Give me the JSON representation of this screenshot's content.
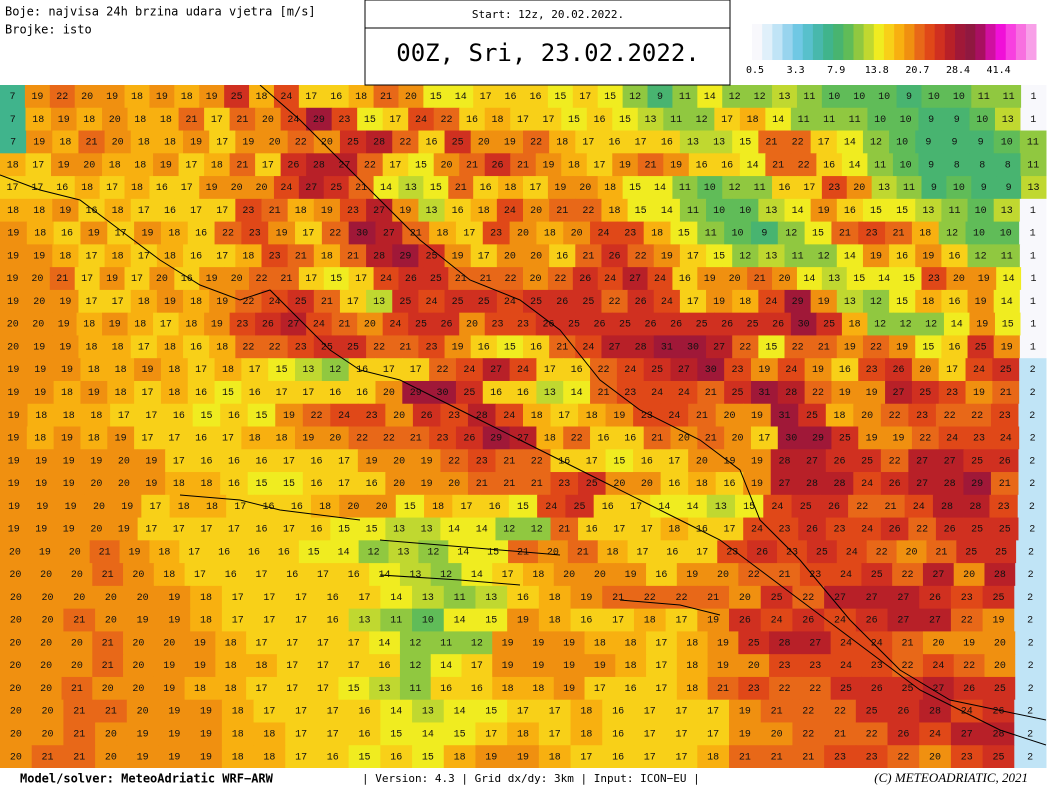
{
  "header": {
    "legend_title": "Boje: najvisa 24h brzina udara vjetra [m/s]",
    "numbers_note": "Brojke: isto",
    "start": "Start: 12z, 20.02.2022.",
    "valid_time": "00Z, Sri, 23.02.2022."
  },
  "legend": {
    "ticks": [
      0.5,
      3.3,
      7.9,
      13.8,
      20.7,
      28.4,
      41.4
    ],
    "colors": [
      "#f8f8fc",
      "#e0f0fa",
      "#c0e4f6",
      "#98d4ee",
      "#70c8e4",
      "#58c0cc",
      "#48b8ac",
      "#40b48c",
      "#48b470",
      "#60bc58",
      "#90c840",
      "#c0d830",
      "#f0ec20",
      "#f8d018",
      "#f8b010",
      "#f09010",
      "#e86818",
      "#e04818",
      "#d03020",
      "#b82028",
      "#a01838",
      "#901840",
      "#a81060",
      "#d010a0",
      "#f010d8",
      "#f840e0",
      "#f870e0",
      "#f8a0e8"
    ]
  },
  "map": {
    "grid": [
      [
        7,
        19,
        22,
        20,
        19,
        18,
        19,
        18,
        19,
        25,
        18,
        24,
        17,
        16,
        18,
        21,
        20,
        15,
        14,
        17,
        16,
        16,
        15,
        17,
        15,
        12,
        9,
        11,
        14,
        12,
        12,
        13,
        11,
        10,
        10,
        10,
        9,
        10,
        10,
        11,
        11,
        1
      ],
      [
        7,
        18,
        19,
        18,
        20,
        18,
        18,
        21,
        17,
        21,
        20,
        24,
        29,
        23,
        15,
        17,
        24,
        22,
        16,
        18,
        17,
        17,
        15,
        16,
        15,
        13,
        11,
        12,
        17,
        18,
        14,
        11,
        11,
        11,
        10,
        10,
        9,
        9,
        10,
        13,
        1
      ],
      [
        7,
        19,
        18,
        21,
        20,
        18,
        18,
        19,
        17,
        19,
        20,
        22,
        20,
        25,
        28,
        22,
        16,
        25,
        20,
        19,
        22,
        18,
        17,
        16,
        17,
        16,
        13,
        13,
        15,
        21,
        22,
        17,
        14,
        12,
        10,
        9,
        9,
        9,
        10,
        11
      ],
      [
        18,
        17,
        19,
        20,
        18,
        18,
        19,
        17,
        18,
        21,
        17,
        26,
        28,
        27,
        22,
        17,
        15,
        20,
        21,
        26,
        21,
        19,
        18,
        17,
        19,
        21,
        19,
        16,
        16,
        14,
        21,
        22,
        16,
        14,
        11,
        10,
        9,
        8,
        8,
        8,
        11
      ],
      [
        17,
        17,
        16,
        18,
        17,
        18,
        16,
        17,
        19,
        20,
        20,
        24,
        27,
        25,
        21,
        14,
        13,
        15,
        21,
        16,
        18,
        17,
        19,
        20,
        18,
        15,
        14,
        11,
        10,
        12,
        11,
        16,
        17,
        23,
        20,
        13,
        11,
        9,
        10,
        9,
        9,
        13
      ],
      [
        18,
        18,
        19,
        16,
        18,
        17,
        16,
        17,
        17,
        23,
        21,
        18,
        19,
        23,
        27,
        19,
        13,
        16,
        18,
        24,
        20,
        21,
        22,
        18,
        15,
        14,
        11,
        10,
        10,
        13,
        14,
        19,
        16,
        15,
        15,
        13,
        11,
        10,
        13,
        1
      ],
      [
        19,
        18,
        16,
        19,
        17,
        19,
        18,
        16,
        22,
        23,
        19,
        17,
        22,
        30,
        27,
        21,
        18,
        17,
        23,
        20,
        18,
        20,
        24,
        23,
        18,
        15,
        11,
        10,
        9,
        12,
        15,
        21,
        23,
        21,
        18,
        12,
        10,
        10,
        1
      ],
      [
        19,
        19,
        18,
        17,
        18,
        17,
        18,
        16,
        17,
        18,
        23,
        21,
        18,
        21,
        28,
        29,
        25,
        19,
        17,
        20,
        20,
        16,
        21,
        26,
        22,
        19,
        17,
        15,
        12,
        13,
        11,
        12,
        14,
        19,
        16,
        19,
        16,
        12,
        11,
        1
      ],
      [
        19,
        20,
        21,
        17,
        19,
        17,
        20,
        16,
        19,
        20,
        22,
        21,
        17,
        15,
        17,
        24,
        26,
        25,
        21,
        21,
        22,
        20,
        22,
        26,
        24,
        27,
        24,
        16,
        19,
        20,
        21,
        20,
        14,
        13,
        15,
        14,
        15,
        23,
        20,
        19,
        14,
        1
      ],
      [
        19,
        20,
        19,
        17,
        17,
        18,
        19,
        18,
        19,
        22,
        24,
        25,
        21,
        17,
        13,
        25,
        24,
        25,
        25,
        24,
        25,
        26,
        25,
        22,
        26,
        24,
        17,
        19,
        18,
        24,
        29,
        19,
        13,
        12,
        15,
        18,
        16,
        19,
        14,
        1
      ],
      [
        20,
        20,
        19,
        18,
        19,
        18,
        17,
        18,
        19,
        23,
        26,
        27,
        24,
        21,
        20,
        24,
        25,
        26,
        20,
        23,
        23,
        26,
        25,
        26,
        25,
        26,
        26,
        25,
        26,
        25,
        26,
        30,
        25,
        18,
        12,
        12,
        12,
        14,
        19,
        15,
        1
      ],
      [
        20,
        19,
        19,
        18,
        18,
        17,
        18,
        16,
        18,
        22,
        22,
        23,
        25,
        25,
        22,
        21,
        23,
        19,
        16,
        15,
        16,
        21,
        24,
        27,
        28,
        31,
        30,
        27,
        22,
        15,
        22,
        21,
        19,
        22,
        19,
        15,
        16,
        25,
        19,
        1
      ],
      [
        19,
        19,
        19,
        18,
        18,
        19,
        18,
        17,
        18,
        17,
        15,
        13,
        12,
        16,
        17,
        17,
        22,
        24,
        27,
        24,
        17,
        16,
        22,
        24,
        25,
        27,
        30,
        23,
        19,
        24,
        19,
        16,
        23,
        26,
        20,
        17,
        24,
        25,
        2
      ],
      [
        19,
        19,
        18,
        19,
        18,
        17,
        18,
        16,
        15,
        16,
        17,
        17,
        16,
        16,
        20,
        29,
        30,
        25,
        16,
        16,
        13,
        14,
        21,
        23,
        24,
        24,
        21,
        25,
        31,
        28,
        22,
        19,
        19,
        27,
        25,
        23,
        19,
        21,
        2
      ],
      [
        19,
        18,
        18,
        18,
        17,
        17,
        16,
        15,
        16,
        15,
        19,
        22,
        24,
        23,
        20,
        26,
        23,
        28,
        24,
        18,
        17,
        18,
        19,
        23,
        24,
        21,
        20,
        19,
        31,
        25,
        18,
        20,
        22,
        23,
        22,
        22,
        23,
        2
      ],
      [
        19,
        18,
        19,
        18,
        19,
        17,
        17,
        16,
        17,
        18,
        18,
        19,
        20,
        22,
        22,
        21,
        23,
        26,
        29,
        27,
        18,
        22,
        16,
        16,
        21,
        20,
        21,
        20,
        17,
        30,
        29,
        25,
        19,
        19,
        22,
        24,
        23,
        24,
        2
      ],
      [
        19,
        19,
        19,
        19,
        20,
        19,
        17,
        16,
        16,
        16,
        17,
        16,
        17,
        19,
        20,
        19,
        22,
        23,
        21,
        22,
        16,
        17,
        15,
        16,
        17,
        20,
        19,
        19,
        28,
        27,
        26,
        25,
        22,
        27,
        27,
        25,
        26,
        2
      ],
      [
        19,
        19,
        19,
        20,
        20,
        19,
        18,
        18,
        16,
        15,
        15,
        16,
        17,
        16,
        20,
        19,
        20,
        21,
        21,
        21,
        23,
        25,
        20,
        20,
        16,
        18,
        16,
        19,
        27,
        28,
        28,
        24,
        26,
        27,
        28,
        29,
        21,
        2
      ],
      [
        19,
        19,
        19,
        20,
        19,
        17,
        18,
        18,
        17,
        16,
        16,
        18,
        20,
        20,
        15,
        18,
        17,
        16,
        15,
        24,
        25,
        16,
        17,
        14,
        14,
        13,
        15,
        24,
        25,
        26,
        22,
        21,
        24,
        28,
        28,
        23,
        2
      ],
      [
        19,
        19,
        19,
        20,
        19,
        17,
        17,
        17,
        17,
        16,
        17,
        16,
        15,
        15,
        13,
        13,
        14,
        14,
        12,
        12,
        21,
        16,
        17,
        17,
        18,
        16,
        17,
        24,
        23,
        26,
        23,
        24,
        26,
        22,
        26,
        25,
        25,
        2
      ],
      [
        20,
        19,
        20,
        21,
        19,
        18,
        17,
        16,
        16,
        16,
        15,
        14,
        12,
        13,
        12,
        14,
        15,
        21,
        20,
        21,
        18,
        17,
        16,
        17,
        23,
        26,
        23,
        25,
        24,
        22,
        20,
        21,
        25,
        25,
        2
      ],
      [
        20,
        20,
        20,
        21,
        20,
        18,
        17,
        16,
        17,
        16,
        17,
        16,
        14,
        13,
        12,
        14,
        17,
        18,
        20,
        20,
        19,
        16,
        19,
        20,
        22,
        21,
        23,
        24,
        25,
        22,
        27,
        20,
        28,
        2
      ],
      [
        20,
        20,
        20,
        20,
        20,
        19,
        18,
        17,
        17,
        17,
        16,
        17,
        14,
        13,
        11,
        13,
        16,
        18,
        19,
        21,
        22,
        22,
        21,
        20,
        25,
        22,
        27,
        27,
        27,
        26,
        23,
        25,
        2
      ],
      [
        20,
        20,
        21,
        20,
        19,
        19,
        18,
        17,
        17,
        17,
        16,
        13,
        11,
        10,
        14,
        15,
        19,
        18,
        16,
        17,
        18,
        17,
        19,
        26,
        24,
        26,
        24,
        26,
        27,
        27,
        22,
        19,
        2
      ],
      [
        20,
        20,
        20,
        21,
        20,
        20,
        19,
        18,
        17,
        17,
        17,
        17,
        14,
        12,
        11,
        12,
        19,
        19,
        19,
        18,
        18,
        17,
        18,
        19,
        25,
        28,
        27,
        24,
        24,
        21,
        20,
        19,
        20,
        2
      ],
      [
        20,
        20,
        20,
        21,
        20,
        19,
        19,
        18,
        18,
        17,
        17,
        17,
        16,
        12,
        14,
        17,
        19,
        19,
        19,
        19,
        18,
        17,
        18,
        19,
        20,
        23,
        23,
        24,
        23,
        22,
        24,
        22,
        20,
        2
      ],
      [
        20,
        20,
        21,
        20,
        20,
        19,
        18,
        18,
        17,
        17,
        17,
        15,
        13,
        11,
        16,
        16,
        18,
        18,
        19,
        17,
        16,
        17,
        18,
        21,
        23,
        22,
        22,
        25,
        26,
        25,
        27,
        26,
        25,
        2
      ],
      [
        20,
        20,
        21,
        21,
        20,
        19,
        19,
        18,
        17,
        17,
        17,
        16,
        14,
        13,
        14,
        15,
        17,
        17,
        18,
        16,
        17,
        17,
        17,
        19,
        21,
        22,
        22,
        25,
        26,
        28,
        24,
        26,
        2
      ],
      [
        20,
        20,
        21,
        20,
        19,
        19,
        19,
        18,
        18,
        17,
        17,
        16,
        15,
        14,
        15,
        17,
        18,
        17,
        18,
        16,
        17,
        17,
        17,
        19,
        20,
        22,
        21,
        22,
        26,
        24,
        27,
        28,
        2
      ],
      [
        20,
        21,
        21,
        20,
        19,
        19,
        19,
        18,
        18,
        17,
        16,
        15,
        16,
        15,
        18,
        19,
        19,
        18,
        17,
        16,
        17,
        17,
        18,
        21,
        21,
        21,
        23,
        23,
        22,
        20,
        23,
        25,
        2
      ]
    ]
  },
  "footer": {
    "model": "Model/solver: MeteoAdriatic WRF−ARW",
    "info": "| Version: 4.3 | Grid dx/dy: 3km | Input: ICON−EU |",
    "copyright": "(C) METEOADRIATIC, 2021"
  }
}
